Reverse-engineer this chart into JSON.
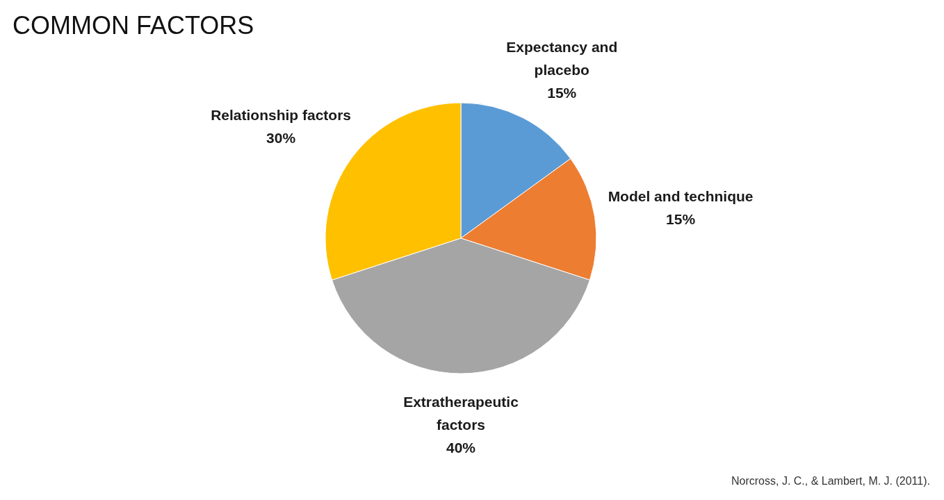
{
  "chart_data": {
    "type": "pie",
    "title": "COMMON FACTORS",
    "categories": [
      "Expectancy and placebo",
      "Model and technique",
      "Extratherapeutic factors",
      "Relationship factors"
    ],
    "values": [
      15,
      15,
      40,
      30
    ],
    "value_labels": [
      "15%",
      "15%",
      "40%",
      "30%"
    ],
    "colors": [
      "#5b9bd5",
      "#ed7d31",
      "#a5a5a5",
      "#ffc000"
    ],
    "legend": false,
    "annotations": [
      "Norcross, J. C., & Lambert, M. J. (2011)."
    ]
  }
}
